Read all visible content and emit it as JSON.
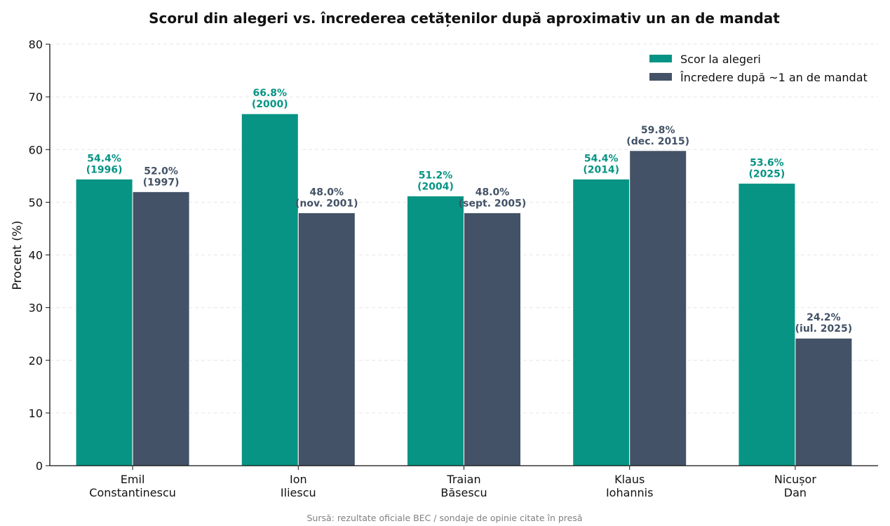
{
  "colors": {
    "election": "#079484",
    "trust": "#435266",
    "axis": "#111111",
    "grid": "#e6e6e6"
  },
  "source_note": "Sursă: rezultate oficiale BEC / sondaje de opinie citate în presă",
  "chart_data": {
    "type": "bar",
    "title": "Scorul din alegeri vs. încrederea cetățenilor după aproximativ un an de mandat",
    "xlabel": "",
    "ylabel": "Procent (%)",
    "ylim": [
      0,
      80
    ],
    "yticks": [
      0,
      10,
      20,
      30,
      40,
      50,
      60,
      70,
      80
    ],
    "grid": "horizontal dashed",
    "legend_position": "top-right",
    "categories": [
      [
        "Emil",
        "Constantinescu"
      ],
      [
        "Ion",
        "Iliescu"
      ],
      [
        "Traian",
        "Băsescu"
      ],
      [
        "Klaus",
        "Iohannis"
      ],
      [
        "Nicușor",
        "Dan"
      ]
    ],
    "series": [
      {
        "name": "Scor la alegeri",
        "values": [
          54.4,
          66.8,
          51.2,
          54.4,
          53.6
        ],
        "labels": [
          [
            "54.4%",
            "(1996)"
          ],
          [
            "66.8%",
            "(2000)"
          ],
          [
            "51.2%",
            "(2004)"
          ],
          [
            "54.4%",
            "(2014)"
          ],
          [
            "53.6%",
            "(2025)"
          ]
        ]
      },
      {
        "name": "Încredere după ~1 an de mandat",
        "values": [
          52.0,
          48.0,
          48.0,
          59.8,
          24.2
        ],
        "labels": [
          [
            "52.0%",
            "(1997)"
          ],
          [
            "48.0%",
            "(nov. 2001)"
          ],
          [
            "48.0%",
            "(sept. 2005)"
          ],
          [
            "59.8%",
            "(dec. 2015)"
          ],
          [
            "24.2%",
            "(iul. 2025)"
          ]
        ]
      }
    ]
  }
}
